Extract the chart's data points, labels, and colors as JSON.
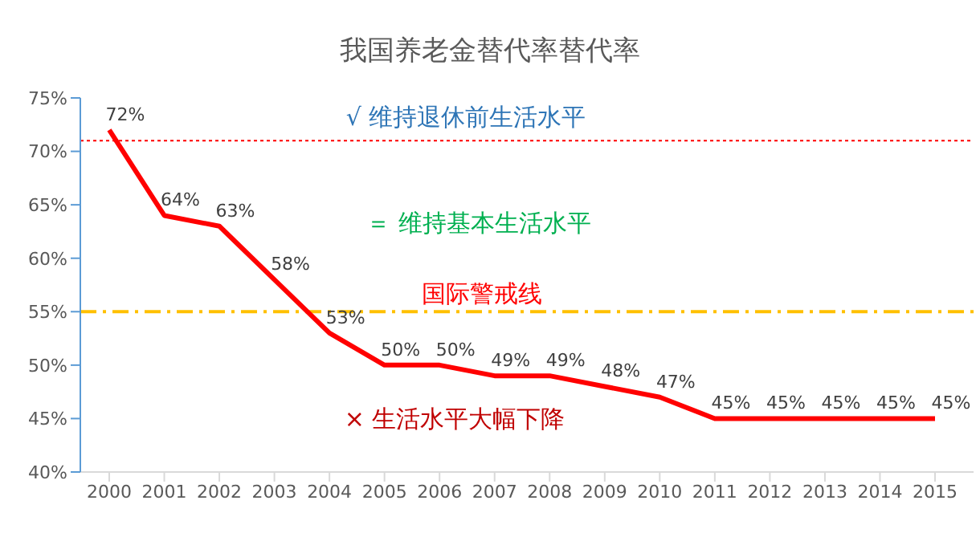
{
  "chart_data": {
    "type": "line",
    "title": "我国养老金替代率替代率",
    "categories": [
      "2000",
      "2001",
      "2002",
      "2003",
      "2004",
      "2005",
      "2006",
      "2007",
      "2008",
      "2009",
      "2010",
      "2011",
      "2012",
      "2013",
      "2014",
      "2015"
    ],
    "series": [
      {
        "color": "#ff0000",
        "values": [
          72,
          64,
          63,
          58,
          53,
          50,
          50,
          49,
          49,
          48,
          47,
          45,
          45,
          45,
          45,
          45
        ],
        "value_labels": [
          "72%",
          "64%",
          "63%",
          "58%",
          "53%",
          "50%",
          "50%",
          "49%",
          "49%",
          "48%",
          "47%",
          "45%",
          "45%",
          "45%",
          "45%",
          "45%"
        ]
      }
    ],
    "ylim": [
      40,
      75
    ],
    "yticks": [
      {
        "value": 40,
        "label": "40%"
      },
      {
        "value": 45,
        "label": "45%"
      },
      {
        "value": 50,
        "label": "50%"
      },
      {
        "value": 55,
        "label": "55%"
      },
      {
        "value": 60,
        "label": "60%"
      },
      {
        "value": 65,
        "label": "65%"
      },
      {
        "value": 70,
        "label": "70%"
      },
      {
        "value": 75,
        "label": "75%"
      }
    ],
    "ref_lines": [
      {
        "axis": "y",
        "value": 71,
        "color": "#ff0000",
        "line_style": "dotted"
      },
      {
        "axis": "y",
        "value": 55,
        "label": "国际警戒线",
        "color": "#ffc000",
        "line_style": "dashed"
      }
    ],
    "annotations": [
      "√ 维持退休前生活水平",
      "＝ 维持基本生活水平",
      "× 生活水平大幅下降"
    ],
    "grid": false,
    "legend": false,
    "marker": "none",
    "line_style": "solid"
  }
}
